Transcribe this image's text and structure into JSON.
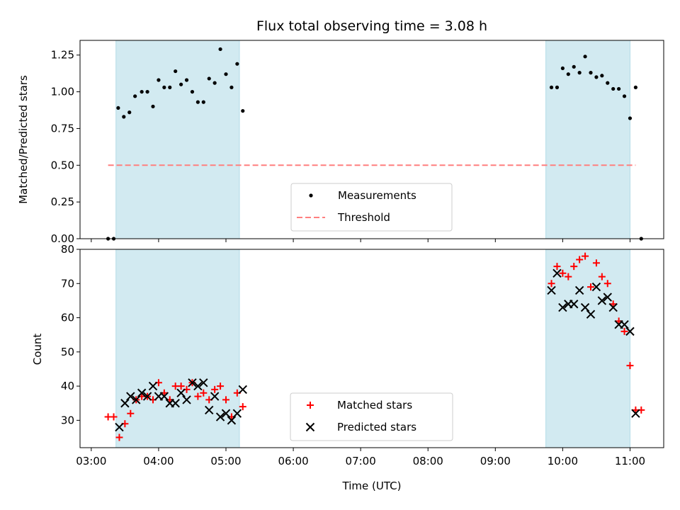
{
  "figure": {
    "title": "Flux total observing time = 3.08 h",
    "xlabel": "Time (UTC)",
    "x_ticks": [
      "03:00",
      "04:00",
      "05:00",
      "06:00",
      "07:00",
      "08:00",
      "09:00",
      "10:00",
      "11:00"
    ],
    "shade_color": "#add8e6",
    "observing_windows": [
      [
        "03:22",
        "05:12"
      ],
      [
        "09:45",
        "11:00"
      ]
    ]
  },
  "chart_data": [
    {
      "type": "scatter",
      "panel": "top",
      "ylabel": "Matched/Predicted stars",
      "ylim": [
        0,
        1.35
      ],
      "y_ticks": [
        "0.00",
        "0.25",
        "0.50",
        "0.75",
        "1.00",
        "1.25"
      ],
      "xlim": [
        "02:50",
        "11:30"
      ],
      "legend_placement": "lower-center",
      "threshold": {
        "name": "Threshold",
        "value": 0.5,
        "x": [
          "03:15",
          "11:05"
        ],
        "color": "#ff7f7f",
        "style": "dashed"
      },
      "series": [
        {
          "name": "Measurements",
          "color": "#000000",
          "marker": "dot",
          "points": [
            [
              "03:15",
              0.0
            ],
            [
              "03:20",
              0.0
            ],
            [
              "03:24",
              0.89
            ],
            [
              "03:29",
              0.83
            ],
            [
              "03:34",
              0.86
            ],
            [
              "03:39",
              0.97
            ],
            [
              "03:45",
              1.0
            ],
            [
              "03:50",
              1.0
            ],
            [
              "03:55",
              0.9
            ],
            [
              "04:00",
              1.08
            ],
            [
              "04:05",
              1.03
            ],
            [
              "04:10",
              1.03
            ],
            [
              "04:15",
              1.14
            ],
            [
              "04:20",
              1.05
            ],
            [
              "04:25",
              1.08
            ],
            [
              "04:30",
              1.0
            ],
            [
              "04:35",
              0.93
            ],
            [
              "04:40",
              0.93
            ],
            [
              "04:45",
              1.09
            ],
            [
              "04:50",
              1.06
            ],
            [
              "04:55",
              1.29
            ],
            [
              "05:00",
              1.12
            ],
            [
              "05:05",
              1.03
            ],
            [
              "05:10",
              1.19
            ],
            [
              "05:15",
              0.87
            ],
            [
              "09:50",
              1.03
            ],
            [
              "09:55",
              1.03
            ],
            [
              "10:00",
              1.16
            ],
            [
              "10:05",
              1.12
            ],
            [
              "10:10",
              1.17
            ],
            [
              "10:15",
              1.13
            ],
            [
              "10:20",
              1.24
            ],
            [
              "10:25",
              1.13
            ],
            [
              "10:30",
              1.1
            ],
            [
              "10:35",
              1.11
            ],
            [
              "10:40",
              1.06
            ],
            [
              "10:45",
              1.02
            ],
            [
              "10:50",
              1.02
            ],
            [
              "10:55",
              0.97
            ],
            [
              "11:00",
              0.82
            ],
            [
              "11:05",
              1.03
            ],
            [
              "11:10",
              0.0
            ]
          ]
        }
      ]
    },
    {
      "type": "scatter",
      "panel": "bottom",
      "ylabel": "Count",
      "ylim": [
        22,
        80
      ],
      "y_ticks": [
        "30",
        "40",
        "50",
        "60",
        "70",
        "80"
      ],
      "xlim": [
        "02:50",
        "11:30"
      ],
      "legend_placement": "lower-center",
      "series": [
        {
          "name": "Matched stars",
          "color": "#ff0000",
          "marker": "plus",
          "points": [
            [
              "03:15",
              31
            ],
            [
              "03:20",
              31
            ],
            [
              "03:25",
              25
            ],
            [
              "03:30",
              29
            ],
            [
              "03:35",
              32
            ],
            [
              "03:40",
              36
            ],
            [
              "03:45",
              37
            ],
            [
              "03:50",
              37
            ],
            [
              "03:55",
              36
            ],
            [
              "04:00",
              41
            ],
            [
              "04:05",
              38
            ],
            [
              "04:10",
              36
            ],
            [
              "04:15",
              40
            ],
            [
              "04:20",
              40
            ],
            [
              "04:25",
              39
            ],
            [
              "04:30",
              41
            ],
            [
              "04:35",
              37
            ],
            [
              "04:40",
              38
            ],
            [
              "04:45",
              36
            ],
            [
              "04:50",
              39
            ],
            [
              "04:55",
              40
            ],
            [
              "05:00",
              36
            ],
            [
              "05:05",
              31
            ],
            [
              "05:10",
              38
            ],
            [
              "05:15",
              34
            ],
            [
              "09:50",
              70
            ],
            [
              "09:55",
              75
            ],
            [
              "10:00",
              73
            ],
            [
              "10:05",
              72
            ],
            [
              "10:10",
              75
            ],
            [
              "10:15",
              77
            ],
            [
              "10:20",
              78
            ],
            [
              "10:25",
              69
            ],
            [
              "10:30",
              76
            ],
            [
              "10:35",
              72
            ],
            [
              "10:40",
              70
            ],
            [
              "10:45",
              64
            ],
            [
              "10:50",
              59
            ],
            [
              "10:55",
              56
            ],
            [
              "11:00",
              46
            ],
            [
              "11:05",
              33
            ],
            [
              "11:10",
              33
            ]
          ]
        },
        {
          "name": "Predicted stars",
          "color": "#000000",
          "marker": "x",
          "points": [
            [
              "03:25",
              28
            ],
            [
              "03:30",
              35
            ],
            [
              "03:35",
              37
            ],
            [
              "03:40",
              36
            ],
            [
              "03:45",
              38
            ],
            [
              "03:50",
              37
            ],
            [
              "03:55",
              40
            ],
            [
              "04:00",
              37
            ],
            [
              "04:05",
              37
            ],
            [
              "04:10",
              35
            ],
            [
              "04:15",
              35
            ],
            [
              "04:20",
              38
            ],
            [
              "04:25",
              36
            ],
            [
              "04:30",
              41
            ],
            [
              "04:35",
              40
            ],
            [
              "04:40",
              41
            ],
            [
              "04:45",
              33
            ],
            [
              "04:50",
              37
            ],
            [
              "04:55",
              31
            ],
            [
              "05:00",
              32
            ],
            [
              "05:05",
              30
            ],
            [
              "05:10",
              32
            ],
            [
              "05:15",
              39
            ],
            [
              "09:50",
              68
            ],
            [
              "09:55",
              73
            ],
            [
              "10:00",
              63
            ],
            [
              "10:05",
              64
            ],
            [
              "10:10",
              64
            ],
            [
              "10:15",
              68
            ],
            [
              "10:20",
              63
            ],
            [
              "10:25",
              61
            ],
            [
              "10:30",
              69
            ],
            [
              "10:35",
              65
            ],
            [
              "10:40",
              66
            ],
            [
              "10:45",
              63
            ],
            [
              "10:50",
              58
            ],
            [
              "10:55",
              58
            ],
            [
              "11:00",
              56
            ],
            [
              "11:05",
              32
            ]
          ]
        }
      ]
    }
  ]
}
